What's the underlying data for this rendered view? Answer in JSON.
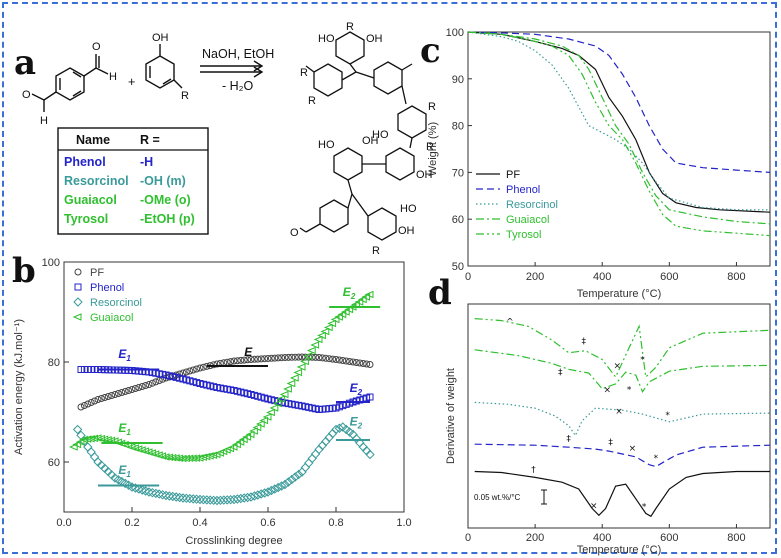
{
  "colors": {
    "frame": "#3b6fd6",
    "black": "#111111",
    "blue": "#2424c8",
    "teal": "#3a9a9a",
    "green": "#2fbf2f",
    "tyrosol": "#2fbf2f",
    "gray": "#444444"
  },
  "panel_a": {
    "label": "a",
    "conditions_top": "NaOH, EtOH",
    "conditions_bottom": "- H₂O",
    "plus": "+",
    "reactant1_atoms": [
      "O",
      "H",
      "O",
      "H"
    ],
    "reactant2_atoms": [
      "OH",
      "R"
    ],
    "product_atoms": [
      "R",
      "R",
      "HO",
      "OH",
      "R",
      "R",
      "HO",
      "R",
      "OH",
      "OH",
      "HO",
      "HO",
      "OH",
      "R",
      "O"
    ],
    "table": {
      "header_name": "Name",
      "header_r": "R =",
      "rows": [
        {
          "name": "Phenol",
          "r": "-H",
          "color": "#2424c8"
        },
        {
          "name": "Resorcinol",
          "r": "-OH (m)",
          "color": "#3a9a9a"
        },
        {
          "name": "Guaiacol",
          "r": "-OMe (o)",
          "color": "#2fbf2f"
        },
        {
          "name": "Tyrosol",
          "r": "-EtOH (p)",
          "color": "#2fbf2f"
        }
      ]
    }
  },
  "chart_data": [
    {
      "id": "b",
      "label": "b",
      "type": "scatter",
      "xlabel": "Crosslinking degree",
      "ylabel": "Activation energy (kJ.mol⁻¹)",
      "xlim": [
        0.0,
        1.0
      ],
      "ylim": [
        50,
        100
      ],
      "xticks": [
        "0.0",
        "0.2",
        "0.4",
        "0.6",
        "0.8",
        "1.0"
      ],
      "yticks": [
        "60",
        "80",
        "100"
      ],
      "x_tick_values": [
        0.0,
        0.2,
        0.4,
        0.6,
        0.8,
        1.0
      ],
      "y_tick_values": [
        60,
        80,
        100
      ],
      "legend": [
        "PF",
        "Phenol",
        "Resorcinol",
        "Guaiacol"
      ],
      "series": [
        {
          "name": "PF",
          "marker": "circle",
          "color": "#444444",
          "x": [
            0.05,
            0.1,
            0.15,
            0.2,
            0.25,
            0.3,
            0.35,
            0.4,
            0.45,
            0.5,
            0.55,
            0.6,
            0.65,
            0.7,
            0.75,
            0.8,
            0.85,
            0.9
          ],
          "y": [
            71,
            72.5,
            73.5,
            74.5,
            75.5,
            76.8,
            77.8,
            78.8,
            79.6,
            80.2,
            80.5,
            80.7,
            80.9,
            81,
            80.9,
            80.5,
            80,
            79.5
          ]
        },
        {
          "name": "Phenol",
          "marker": "square",
          "color": "#2424c8",
          "x": [
            0.05,
            0.1,
            0.15,
            0.2,
            0.25,
            0.3,
            0.35,
            0.4,
            0.45,
            0.5,
            0.55,
            0.6,
            0.65,
            0.7,
            0.75,
            0.8,
            0.85,
            0.9
          ],
          "y": [
            78.5,
            78.5,
            78.4,
            78.3,
            78,
            77.4,
            76.6,
            75.7,
            74.9,
            74.3,
            73.5,
            72.6,
            71.8,
            71.2,
            70.5,
            70.8,
            72,
            73
          ]
        },
        {
          "name": "Resorcinol",
          "marker": "diamond",
          "color": "#3a9a9a",
          "x": [
            0.04,
            0.07,
            0.1,
            0.15,
            0.2,
            0.25,
            0.3,
            0.35,
            0.4,
            0.45,
            0.5,
            0.55,
            0.6,
            0.65,
            0.7,
            0.75,
            0.8,
            0.82,
            0.85,
            0.88,
            0.9
          ],
          "y": [
            66.5,
            63,
            60,
            56.8,
            55,
            54,
            53.3,
            52.8,
            52.5,
            52.3,
            52.5,
            53,
            54,
            55.5,
            58,
            62.5,
            66.5,
            67,
            65.5,
            63,
            61.5
          ]
        },
        {
          "name": "Guaiacol",
          "marker": "triangle",
          "color": "#2fbf2f",
          "x": [
            0.03,
            0.06,
            0.1,
            0.15,
            0.2,
            0.25,
            0.3,
            0.35,
            0.4,
            0.45,
            0.5,
            0.55,
            0.6,
            0.65,
            0.7,
            0.75,
            0.8,
            0.85,
            0.9
          ],
          "y": [
            63,
            64.5,
            64.8,
            64.2,
            63,
            62,
            61,
            60.7,
            60.8,
            61.5,
            63,
            65.5,
            69,
            73.5,
            79,
            84.5,
            88.5,
            91,
            93.5
          ]
        }
      ],
      "annotations": [
        {
          "text": "E",
          "sub": "",
          "color": "#111111",
          "x": 0.53,
          "y": 81.2,
          "line_x": [
            0.42,
            0.6
          ],
          "line_y": 79.2
        },
        {
          "text": "E",
          "sub": "1",
          "color": "#2424c8",
          "x": 0.16,
          "y": 80.8,
          "line_x": [
            0.1,
            0.28
          ],
          "line_y": 78.5
        },
        {
          "text": "E",
          "sub": "2",
          "color": "#2424c8",
          "x": 0.84,
          "y": 74,
          "line_x": [
            0.8,
            0.9
          ],
          "line_y": 72
        },
        {
          "text": "E",
          "sub": "1",
          "color": "#2fbf2f",
          "x": 0.16,
          "y": 66,
          "line_x": [
            0.11,
            0.29
          ],
          "line_y": 63.8
        },
        {
          "text": "E",
          "sub": "2",
          "color": "#2fbf2f",
          "x": 0.82,
          "y": 93.2,
          "line_x": [
            0.78,
            0.93
          ],
          "line_y": 91
        },
        {
          "text": "E",
          "sub": "1",
          "color": "#3a9a9a",
          "x": 0.16,
          "y": 57.6,
          "line_x": [
            0.1,
            0.28
          ],
          "line_y": 55.3
        },
        {
          "text": "E",
          "sub": "2",
          "color": "#3a9a9a",
          "x": 0.84,
          "y": 67.3,
          "line_x": [
            0.8,
            0.9
          ],
          "line_y": 64.4
        }
      ]
    },
    {
      "id": "c",
      "label": "c",
      "type": "line",
      "xlabel": "Temperature (°C)",
      "ylabel": "Weight (%)",
      "xlim": [
        0,
        900
      ],
      "ylim": [
        50,
        100
      ],
      "xticks": [
        "0",
        "200",
        "400",
        "600",
        "800"
      ],
      "yticks": [
        "50",
        "60",
        "70",
        "80",
        "90",
        "100"
      ],
      "x_tick_values": [
        0,
        200,
        400,
        600,
        800
      ],
      "y_tick_values": [
        50,
        60,
        70,
        80,
        90,
        100
      ],
      "legend": [
        "PF",
        "Phenol",
        "Resorcinol",
        "Guaiacol",
        "Tyrosol"
      ],
      "series": [
        {
          "name": "PF",
          "style": "solid",
          "color": "#111111",
          "x": [
            0,
            100,
            200,
            280,
            330,
            380,
            420,
            460,
            500,
            540,
            580,
            620,
            680,
            750,
            900
          ],
          "y": [
            100,
            99.5,
            98,
            96.5,
            95,
            92,
            86,
            82,
            77,
            70,
            65.5,
            63.5,
            62.5,
            62,
            61.5
          ]
        },
        {
          "name": "Phenol",
          "style": "dashed",
          "color": "#2424c8",
          "x": [
            0,
            100,
            200,
            300,
            380,
            420,
            460,
            500,
            540,
            580,
            620,
            700,
            800,
            900
          ],
          "y": [
            100,
            99.8,
            99.5,
            98.5,
            97,
            95,
            91,
            86,
            80,
            75,
            72,
            71,
            70.5,
            70
          ]
        },
        {
          "name": "Resorcinol",
          "style": "dotted",
          "color": "#3a9a9a",
          "x": [
            0,
            100,
            150,
            200,
            250,
            300,
            330,
            360,
            400,
            440,
            480,
            520,
            560,
            600,
            700,
            800,
            900
          ],
          "y": [
            100,
            99,
            98,
            96,
            93,
            88,
            84,
            80,
            78.5,
            77,
            75,
            72,
            68,
            64.5,
            62.5,
            62,
            62
          ]
        },
        {
          "name": "Guaiacol",
          "style": "dashdot",
          "color": "#2fbf2f",
          "x": [
            0,
            100,
            200,
            280,
            330,
            360,
            400,
            440,
            480,
            520,
            560,
            600,
            700,
            800,
            900
          ],
          "y": [
            100,
            99.5,
            98.5,
            97,
            95,
            92,
            86,
            80,
            76,
            70,
            65,
            62,
            60.5,
            59.5,
            59
          ]
        },
        {
          "name": "Tyrosol",
          "style": "dashdotdot",
          "color": "#2fbf2f",
          "x": [
            0,
            100,
            200,
            250,
            300,
            340,
            380,
            420,
            460,
            500,
            540,
            580,
            620,
            700,
            800,
            900
          ],
          "y": [
            100,
            99.5,
            98,
            97,
            95,
            91,
            85,
            80,
            77,
            72,
            66,
            61,
            58.5,
            57.5,
            57,
            56.5
          ]
        }
      ]
    },
    {
      "id": "d",
      "label": "d",
      "type": "line",
      "xlabel": "Temperature (°C)",
      "ylabel": "Derivative of weight",
      "xlim": [
        0,
        900
      ],
      "xticks": [
        "0",
        "200",
        "400",
        "600",
        "800"
      ],
      "x_tick_values": [
        0,
        200,
        400,
        600,
        800
      ],
      "scale_label": "0.05 wt.%/°C",
      "series": [
        {
          "name": "Tyrosol",
          "style": "dashdotdot",
          "color": "#2fbf2f",
          "x": [
            20,
            100,
            180,
            250,
            300,
            350,
            400,
            440,
            480,
            510,
            530,
            560,
            600,
            700,
            900
          ],
          "y": [
            0.0,
            -0.2,
            -0.8,
            -2.2,
            -3.5,
            -3.3,
            -4.2,
            -6.0,
            -3.0,
            -0.8,
            -6.0,
            -5.0,
            -3.0,
            -1.5,
            -1.2
          ]
        },
        {
          "name": "Guaiacol",
          "style": "dashdot",
          "color": "#2fbf2f",
          "x": [
            20,
            150,
            250,
            300,
            360,
            400,
            440,
            470,
            500,
            520,
            540,
            600,
            700,
            900
          ],
          "y": [
            -3.2,
            -3.8,
            -4.6,
            -5.2,
            -5.6,
            -7.2,
            -6.7,
            -5.5,
            -5.8,
            -7.5,
            -6.5,
            -5.4,
            -4.9,
            -4.8
          ]
        },
        {
          "name": "Resorcinol",
          "style": "dotted",
          "color": "#3a9a9a",
          "x": [
            20,
            120,
            200,
            260,
            300,
            320,
            340,
            380,
            420,
            460,
            520,
            560,
            600,
            700,
            900
          ],
          "y": [
            -8.6,
            -8.8,
            -9.2,
            -10.0,
            -11.0,
            -12.0,
            -10.5,
            -9.2,
            -9.3,
            -9.4,
            -9.8,
            -10.2,
            -10.6,
            -9.8,
            -9.7
          ]
        },
        {
          "name": "Phenol",
          "style": "dashed",
          "color": "#2424c8",
          "x": [
            20,
            200,
            300,
            380,
            420,
            460,
            500,
            540,
            560,
            580,
            620,
            700,
            900
          ],
          "y": [
            -12.9,
            -13.0,
            -13.2,
            -13.4,
            -13.6,
            -13.9,
            -14.2,
            -15.0,
            -15.2,
            -14.8,
            -14.0,
            -13.2,
            -13.0
          ]
        },
        {
          "name": "PF",
          "style": "solid",
          "color": "#111111",
          "x": [
            20,
            100,
            200,
            280,
            330,
            370,
            390,
            410,
            440,
            470,
            500,
            530,
            545,
            560,
            600,
            650,
            700,
            800,
            900
          ],
          "y": [
            -15.7,
            -15.8,
            -16.3,
            -16.8,
            -17.5,
            -19.5,
            -20.2,
            -19.5,
            -17.2,
            -17.0,
            -18.5,
            -20.0,
            -20.3,
            -19.5,
            -17.5,
            -16.3,
            -15.9,
            -15.7,
            -15.7
          ]
        }
      ],
      "annotations": [
        {
          "text": "^",
          "x": 125,
          "y": -0.6,
          "color": "#111111"
        },
        {
          "text": "‡",
          "x": 345,
          "y": -2.6,
          "color": "#111111"
        },
        {
          "text": "×",
          "x": 445,
          "y": -5.1,
          "color": "#111111"
        },
        {
          "text": "*",
          "x": 520,
          "y": -4.5,
          "color": "#111111"
        },
        {
          "text": "‡",
          "x": 275,
          "y": -5.8,
          "color": "#111111"
        },
        {
          "text": "×",
          "x": 415,
          "y": -7.6,
          "color": "#111111"
        },
        {
          "text": "*",
          "x": 480,
          "y": -7.6,
          "color": "#111111"
        },
        {
          "text": "‡",
          "x": 300,
          "y": -12.6,
          "color": "#111111"
        },
        {
          "text": "×",
          "x": 450,
          "y": -9.8,
          "color": "#111111"
        },
        {
          "text": "*",
          "x": 595,
          "y": -10.2,
          "color": "#111111"
        },
        {
          "text": "‡",
          "x": 425,
          "y": -13.0,
          "color": "#111111"
        },
        {
          "text": "×",
          "x": 490,
          "y": -13.6,
          "color": "#111111"
        },
        {
          "text": "*",
          "x": 560,
          "y": -14.6,
          "color": "#111111"
        },
        {
          "text": "†",
          "x": 195,
          "y": -15.8,
          "color": "#111111"
        },
        {
          "text": "×",
          "x": 375,
          "y": -19.5,
          "color": "#111111"
        },
        {
          "text": "*",
          "x": 525,
          "y": -19.6,
          "color": "#111111"
        }
      ]
    }
  ]
}
